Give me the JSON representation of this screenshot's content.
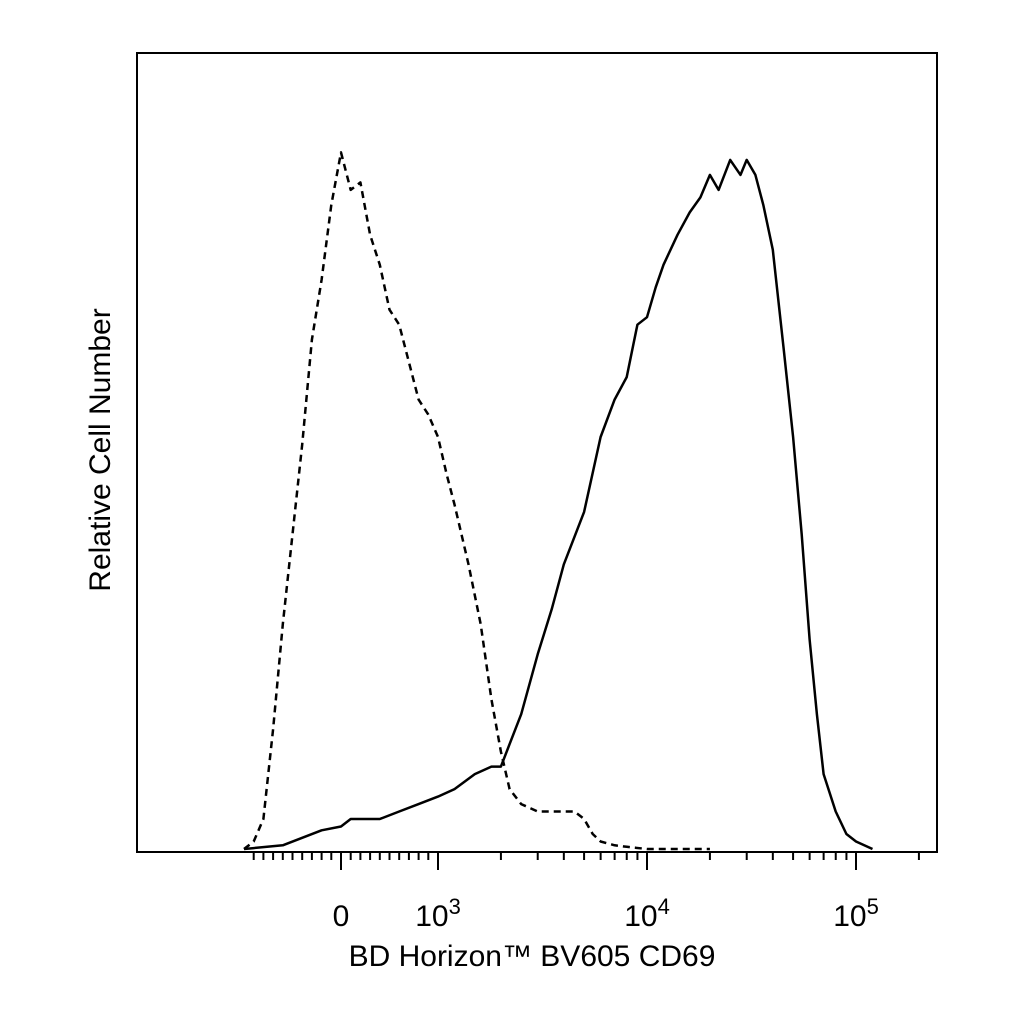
{
  "chart_data": {
    "type": "line",
    "title": "",
    "xlabel": "BD Horizon™ BV605 CD69",
    "ylabel": "Relative Cell Number",
    "x_scale": "biexponential",
    "xlim": [
      -1000,
      200000
    ],
    "ylim": [
      0,
      100
    ],
    "grid": false,
    "legend": "none",
    "x_ticks": [
      {
        "value": 0,
        "base": "0",
        "exp": ""
      },
      {
        "value": 1000,
        "base": "10",
        "exp": "3"
      },
      {
        "value": 10000,
        "base": "10",
        "exp": "4"
      },
      {
        "value": 100000,
        "base": "10",
        "exp": "5"
      }
    ],
    "series": [
      {
        "style": "dashed",
        "x": [
          -1000,
          -900,
          -800,
          -700,
          -600,
          -500,
          -400,
          -300,
          -200,
          -100,
          0,
          100,
          200,
          300,
          400,
          500,
          600,
          700,
          800,
          900,
          1000,
          1100,
          1200,
          1400,
          1600,
          1800,
          2000,
          2200,
          2500,
          3000,
          3500,
          4000,
          4500,
          5000,
          5500,
          6000,
          7000,
          8000,
          10000,
          20000
        ],
        "y": [
          0,
          1,
          4,
          16,
          30,
          42,
          54,
          68,
          76,
          86,
          93,
          88,
          89,
          82,
          78,
          72,
          70,
          65,
          60,
          58,
          55,
          50,
          46,
          38,
          30,
          20,
          13,
          8,
          6,
          5,
          5,
          5,
          5,
          4,
          2,
          1,
          0.5,
          0.3,
          0,
          0
        ]
      },
      {
        "style": "solid",
        "x": [
          -1000,
          -600,
          -400,
          -200,
          0,
          100,
          200,
          400,
          600,
          800,
          1000,
          1200,
          1500,
          1800,
          2000,
          2200,
          2500,
          3000,
          3500,
          4000,
          5000,
          6000,
          7000,
          8000,
          9000,
          10000,
          11000,
          12000,
          14000,
          16000,
          18000,
          20000,
          22000,
          25000,
          28000,
          30000,
          33000,
          36000,
          40000,
          45000,
          50000,
          55000,
          60000,
          65000,
          70000,
          80000,
          90000,
          100000,
          120000
        ],
        "y": [
          0,
          0.5,
          1.5,
          2.5,
          3,
          4,
          4,
          4,
          5,
          6,
          7,
          8,
          10,
          11,
          11,
          14,
          18,
          26,
          32,
          38,
          45,
          55,
          60,
          63,
          70,
          71,
          75,
          78,
          82,
          85,
          87,
          90,
          88,
          92,
          90,
          92,
          90,
          86,
          80,
          67,
          55,
          42,
          28,
          18,
          10,
          5,
          2,
          1,
          0
        ]
      }
    ]
  }
}
